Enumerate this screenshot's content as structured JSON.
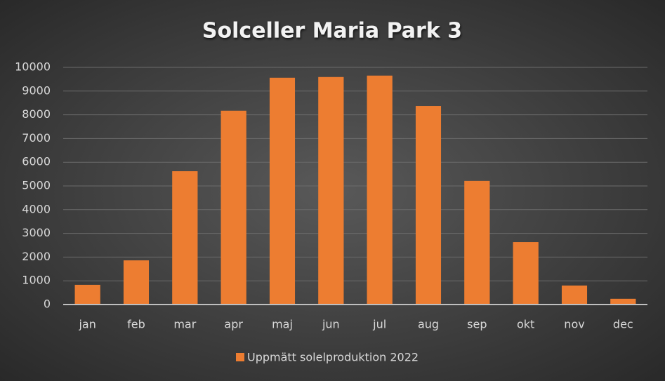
{
  "chart_data": {
    "type": "bar",
    "title": "Solceller Maria Park 3",
    "categories": [
      "jan",
      "feb",
      "mar",
      "apr",
      "maj",
      "jun",
      "jul",
      "aug",
      "sep",
      "okt",
      "nov",
      "dec"
    ],
    "series": [
      {
        "name": "Uppmätt solelproduktion 2022",
        "color": "#ed7d31",
        "values": [
          830,
          1860,
          5620,
          8170,
          9560,
          9590,
          9650,
          8370,
          5210,
          2630,
          800,
          240
        ]
      }
    ],
    "ylim": [
      0,
      10000
    ],
    "yticks": [
      0,
      1000,
      2000,
      3000,
      4000,
      5000,
      6000,
      7000,
      8000,
      9000,
      10000
    ],
    "grid": true,
    "legend": "bottom"
  }
}
